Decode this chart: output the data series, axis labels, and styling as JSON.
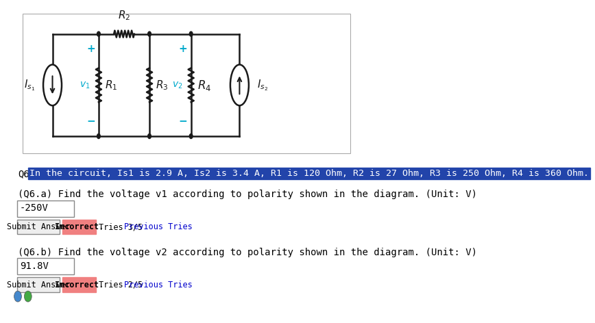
{
  "bg_color": "#ffffff",
  "circuit_color": "#1a1a1a",
  "cyan_color": "#00aacc",
  "highlight_color": "#3355bb",
  "highlight_bg": "#3355bb",
  "q6_text": "Q6.",
  "highlight_text": "In the circuit, Is1 is 2.9 A, Is2 is 3.4 A, R1 is 120 Ohm, R2 is 27 Ohm, R3 is 250 Ohm, R4 is 360 Ohm.",
  "q6a_text": "(Q6.a) Find the voltage v1 according to polarity shown in the diagram. (Unit: V)",
  "q6a_answer": "-250V",
  "q6b_text": "(Q6.b) Find the voltage v2 according to polarity shown in the diagram. (Unit: V)",
  "q6b_answer": "91.8V",
  "incorrect_color": "#f08080",
  "incorrect_bg": "#f08080",
  "tries_3": "Tries 3/5",
  "tries_2": "Tries 2/5",
  "link_color": "#0000cc",
  "previous_tries": "Previous Tries",
  "submit_text": "Submit Answer",
  "incorrect_text": "Incorrect."
}
